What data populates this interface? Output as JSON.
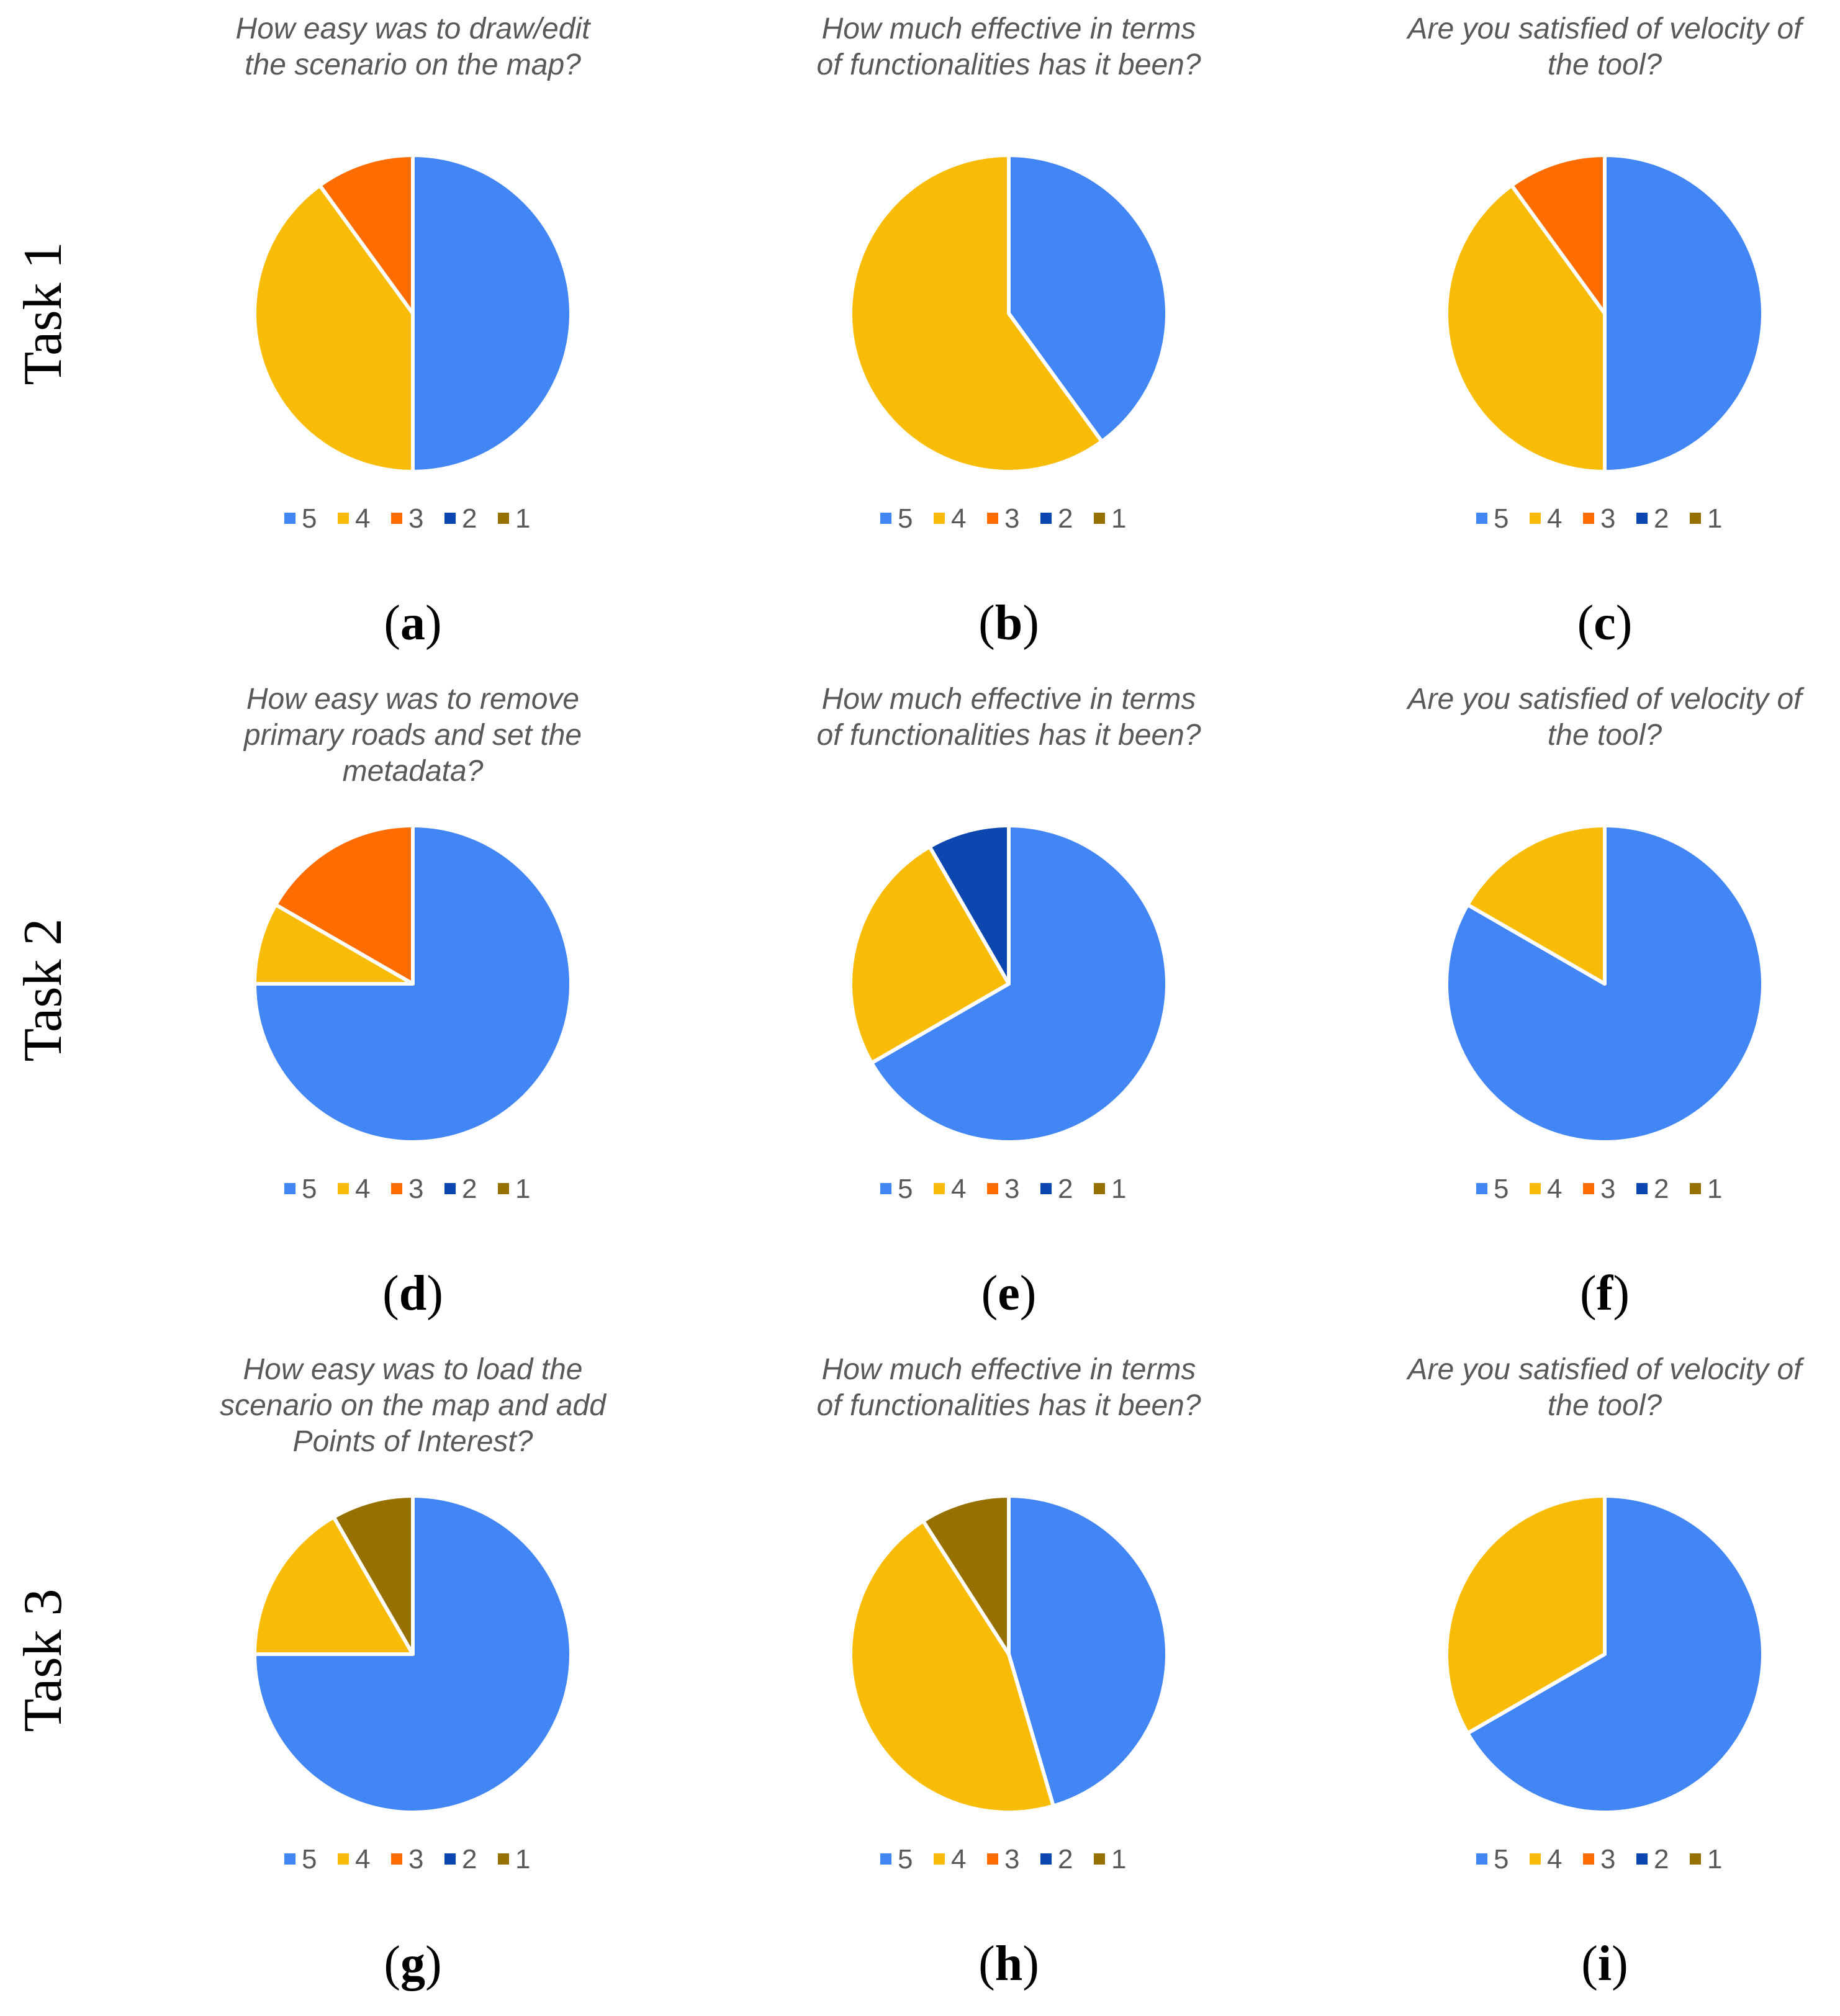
{
  "colors": {
    "5": "#4285F4",
    "4": "#F9BC06",
    "3": "#FF6D01",
    "2": "#0B47AF",
    "1": "#967000"
  },
  "legend_labels": [
    "5",
    "4",
    "3",
    "2",
    "1"
  ],
  "task_labels": [
    "Task 1",
    "Task 2",
    "Task 3"
  ],
  "chart_data": [
    {
      "type": "pie",
      "panel": "a",
      "task": "Task 1",
      "title_lines": [
        "How easy was to draw/edit",
        "the scenario on the map?"
      ],
      "categories": [
        "5",
        "4",
        "3",
        "2",
        "1"
      ],
      "values": [
        50,
        40,
        10,
        0,
        0
      ]
    },
    {
      "type": "pie",
      "panel": "b",
      "task": "Task 1",
      "title_lines": [
        "How much effective in terms",
        "of functionalities has it been?"
      ],
      "categories": [
        "5",
        "4",
        "3",
        "2",
        "1"
      ],
      "values": [
        40,
        60,
        0,
        0,
        0
      ]
    },
    {
      "type": "pie",
      "panel": "c",
      "task": "Task 1",
      "title_lines": [
        "Are you satisfied of velocity of",
        "the tool?"
      ],
      "categories": [
        "5",
        "4",
        "3",
        "2",
        "1"
      ],
      "values": [
        50,
        40,
        10,
        0,
        0
      ]
    },
    {
      "type": "pie",
      "panel": "d",
      "task": "Task 2",
      "title_lines": [
        "How easy was to remove",
        "primary roads and set the",
        "metadata?"
      ],
      "categories": [
        "5",
        "4",
        "3",
        "2",
        "1"
      ],
      "values": [
        75,
        8.33,
        16.67,
        0,
        0
      ]
    },
    {
      "type": "pie",
      "panel": "e",
      "task": "Task 2",
      "title_lines": [
        "How much effective in terms",
        "of functionalities has it been?"
      ],
      "categories": [
        "5",
        "4",
        "3",
        "2",
        "1"
      ],
      "values": [
        66.67,
        25,
        0,
        8.33,
        0
      ]
    },
    {
      "type": "pie",
      "panel": "f",
      "task": "Task 2",
      "title_lines": [
        "Are you satisfied of velocity of",
        "the tool?"
      ],
      "categories": [
        "5",
        "4",
        "3",
        "2",
        "1"
      ],
      "values": [
        83.33,
        16.67,
        0,
        0,
        0
      ]
    },
    {
      "type": "pie",
      "panel": "g",
      "task": "Task 3",
      "title_lines": [
        "How easy was to load the",
        "scenario on the map and add",
        "Points of Interest?"
      ],
      "categories": [
        "5",
        "4",
        "3",
        "2",
        "1"
      ],
      "values": [
        75,
        16.67,
        0,
        0,
        8.33
      ]
    },
    {
      "type": "pie",
      "panel": "h",
      "task": "Task 3",
      "title_lines": [
        "How much effective in terms",
        "of functionalities has it been?"
      ],
      "categories": [
        "5",
        "4",
        "3",
        "2",
        "1"
      ],
      "values": [
        45.45,
        45.45,
        0,
        0,
        9.09
      ]
    },
    {
      "type": "pie",
      "panel": "i",
      "task": "Task 3",
      "title_lines": [
        "Are you satisfied of velocity of",
        "the tool?"
      ],
      "categories": [
        "5",
        "4",
        "3",
        "2",
        "1"
      ],
      "values": [
        66.67,
        33.33,
        0,
        0,
        0
      ]
    }
  ]
}
